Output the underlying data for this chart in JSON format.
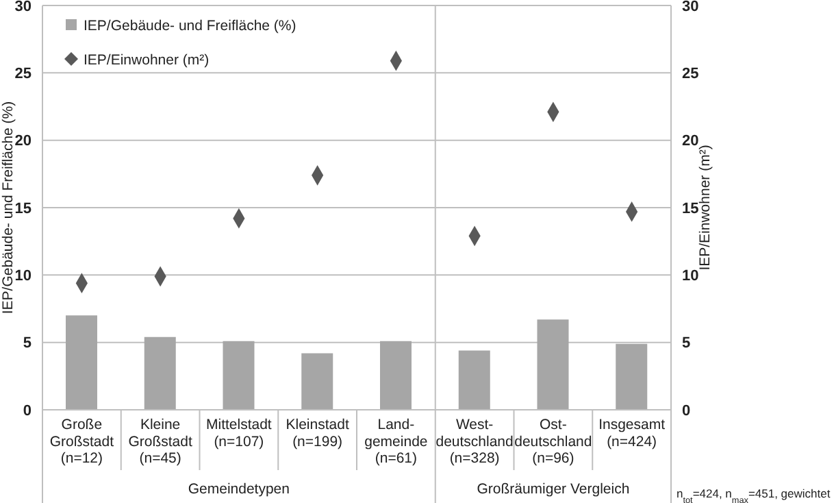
{
  "chart_data": {
    "type": "bar",
    "ylabel": "IEP/Gebäude- und Freifläche (%)",
    "y2label": "IEP/Einwohner (m²)",
    "categories": [
      "Große\nGroßstadt\n(n=12)",
      "Kleine\nGroßstadt\n(n=45)",
      "Mittelstadt\n(n=107)",
      "Kleinstadt\n(n=199)",
      "Land-\ngemeinde\n(n=61)",
      "West-\ndeutschland\n(n=328)",
      "Ost-\ndeutschland\n(n=96)",
      "Insgesamt\n(n=424)"
    ],
    "series": [
      {
        "name": "IEP/Gebäude- und Freifläche (%)",
        "color": "#a6a6a6",
        "values": [
          7.0,
          5.4,
          5.1,
          4.2,
          5.1,
          4.4,
          6.7,
          4.9
        ]
      },
      {
        "name": "IEP/Einwohner (m²)",
        "type": "scatter",
        "axis": "y2",
        "marker": "diamond",
        "color": "#595959",
        "values": [
          9.4,
          9.9,
          14.2,
          17.4,
          25.9,
          12.9,
          22.1,
          14.7
        ]
      }
    ],
    "ylim": [
      0,
      30
    ],
    "yticks": [
      0,
      5,
      10,
      15,
      20,
      25,
      30
    ],
    "y2lim": [
      0,
      30
    ],
    "y2ticks": [
      0,
      5,
      10,
      15,
      20,
      25,
      30
    ],
    "grid": "y",
    "legend": "top left",
    "annotations": [
      "Gemeindetypen",
      "Großräumiger Vergleich",
      "n$_{tot}$=424, n$_{max}$=451, gewichtet"
    ]
  }
}
